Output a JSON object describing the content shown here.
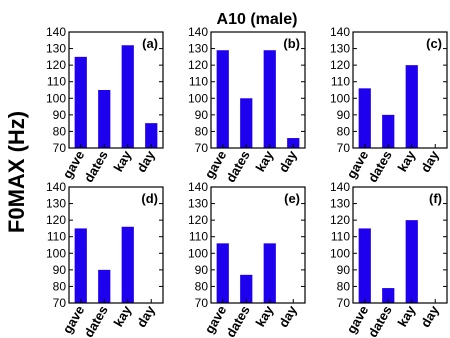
{
  "figure": {
    "title": "A10 (male)",
    "ylabel": "F0MAX (Hz)",
    "bar_color": "#1f00ee"
  },
  "chart_data": [
    {
      "type": "bar",
      "panel_label": "(a)",
      "categories": [
        "gave",
        "dates",
        "kay",
        "day"
      ],
      "values": [
        125,
        105,
        132,
        85
      ],
      "ylim": [
        70,
        140
      ],
      "yticks": [
        70,
        80,
        90,
        100,
        110,
        120,
        130,
        140
      ]
    },
    {
      "type": "bar",
      "panel_label": "(b)",
      "categories": [
        "gave",
        "dates",
        "kay",
        "day"
      ],
      "values": [
        129,
        100,
        129,
        76
      ],
      "ylim": [
        70,
        140
      ],
      "yticks": [
        70,
        80,
        90,
        100,
        110,
        120,
        130,
        140
      ]
    },
    {
      "type": "bar",
      "panel_label": "(c)",
      "categories": [
        "gave",
        "dates",
        "kay",
        "day"
      ],
      "values": [
        106,
        90,
        120,
        70
      ],
      "ylim": [
        70,
        140
      ],
      "yticks": [
        70,
        80,
        90,
        100,
        110,
        120,
        130,
        140
      ]
    },
    {
      "type": "bar",
      "panel_label": "(d)",
      "categories": [
        "gave",
        "dates",
        "kay",
        "day"
      ],
      "values": [
        115,
        90,
        116,
        70
      ],
      "ylim": [
        70,
        140
      ],
      "yticks": [
        70,
        80,
        90,
        100,
        110,
        120,
        130,
        140
      ]
    },
    {
      "type": "bar",
      "panel_label": "(e)",
      "categories": [
        "gave",
        "dates",
        "kay",
        "day"
      ],
      "values": [
        106,
        87,
        106,
        70
      ],
      "ylim": [
        70,
        140
      ],
      "yticks": [
        70,
        80,
        90,
        100,
        110,
        120,
        130,
        140
      ]
    },
    {
      "type": "bar",
      "panel_label": "(f)",
      "categories": [
        "gave",
        "dates",
        "kay",
        "day"
      ],
      "values": [
        115,
        79,
        120,
        70
      ],
      "ylim": [
        70,
        140
      ],
      "yticks": [
        70,
        80,
        90,
        100,
        110,
        120,
        130,
        140
      ]
    }
  ]
}
